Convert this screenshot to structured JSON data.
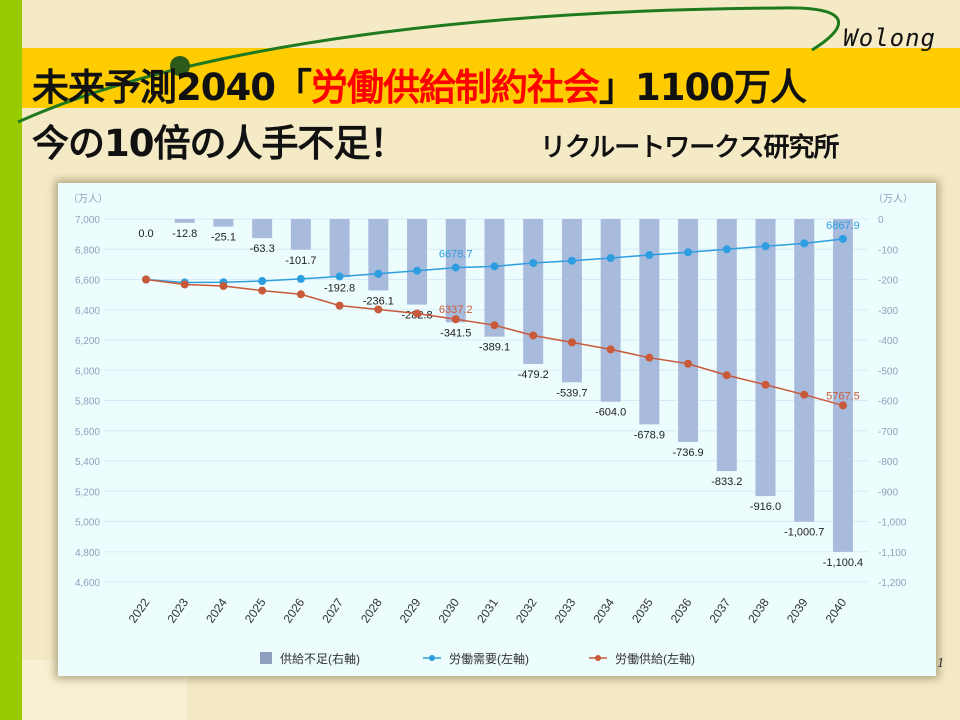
{
  "header": {
    "brand": "Wolong",
    "title_prefix": "未来予測2040「",
    "title_highlight": "労働供給制約社会",
    "title_suffix": "」1100万人",
    "subtitle": "今の10倍の人手不足！",
    "source": "リクルートワークス研究所"
  },
  "page_number": "1",
  "colors": {
    "bar": "#a9bbdc",
    "demand": "#2e9ee0",
    "supply": "#c85a3a",
    "grid": "#d6ebf7",
    "axis_text": "#8fa2bd",
    "highlight": "#ff0000",
    "band": "#ffcc00"
  },
  "chart_data": {
    "type": "bar+line",
    "categories": [
      "2022",
      "2023",
      "2024",
      "2025",
      "2026",
      "2027",
      "2028",
      "2029",
      "2030",
      "2031",
      "2032",
      "2033",
      "2034",
      "2035",
      "2036",
      "2037",
      "2038",
      "2039",
      "2040"
    ],
    "series": [
      {
        "name": "供給不足(右軸)",
        "type": "bar",
        "axis": "right",
        "values": [
          0.0,
          -12.8,
          -25.1,
          -63.3,
          -101.7,
          -192.8,
          -236.1,
          -282.8,
          -341.5,
          -389.1,
          -479.2,
          -539.7,
          -604.0,
          -678.9,
          -736.9,
          -833.2,
          -916.0,
          -1000.7,
          -1100.4
        ],
        "labels": [
          "0.0",
          "-12.8",
          "-25.1",
          "-63.3",
          "-101.7",
          "-192.8",
          "-236.1",
          "-282.8",
          "-341.5",
          "-389.1",
          "-479.2",
          "-539.7",
          "-604.0",
          "-678.9",
          "-736.9",
          "-833.2",
          "-916.0",
          "-1,000.7",
          "-1,100.4"
        ]
      },
      {
        "name": "労働需要(左軸)",
        "type": "line",
        "axis": "left",
        "values": [
          6600,
          6580,
          6582,
          6590,
          6604,
          6620,
          6638,
          6658,
          6678.7,
          6687,
          6709,
          6724,
          6742,
          6762,
          6780,
          6800,
          6820,
          6839,
          6867.9
        ]
      },
      {
        "name": "労働供給(左軸)",
        "type": "line",
        "axis": "left",
        "values": [
          6600,
          6567.2,
          6556.9,
          6526.7,
          6502.3,
          6427.2,
          6401.9,
          6375.2,
          6337.2,
          6297.9,
          6229.8,
          6184.3,
          6138,
          6083.1,
          6043.1,
          5966.8,
          5904,
          5838.3,
          5767.5
        ]
      }
    ],
    "line_labels": {
      "demand": [
        {
          "index": 8,
          "text": "6678.7"
        },
        {
          "index": 18,
          "text": "6867.9"
        }
      ],
      "supply": [
        {
          "index": 8,
          "text": "6337.2"
        },
        {
          "index": 18,
          "text": "5767.5"
        }
      ]
    },
    "left_axis": {
      "unit": "（万人）",
      "ylim": [
        4600,
        7000
      ],
      "ticks": [
        "7,000",
        "6,800",
        "6,600",
        "6,400",
        "6,200",
        "6,000",
        "5,800",
        "5,600",
        "5,400",
        "5,200",
        "5,000",
        "4,800",
        "4,600"
      ]
    },
    "right_axis": {
      "unit": "（万人）",
      "ylim": [
        -1200,
        0
      ],
      "ticks": [
        "0",
        "-100",
        "-200",
        "-300",
        "-400",
        "-500",
        "-600",
        "-700",
        "-800",
        "-900",
        "-1,000",
        "-1,100",
        "-1,200"
      ]
    },
    "grid": true,
    "legend": {
      "position": "bottom",
      "items": [
        "供給不足(右軸)",
        "労働需要(左軸)",
        "労働供給(左軸)"
      ]
    }
  }
}
